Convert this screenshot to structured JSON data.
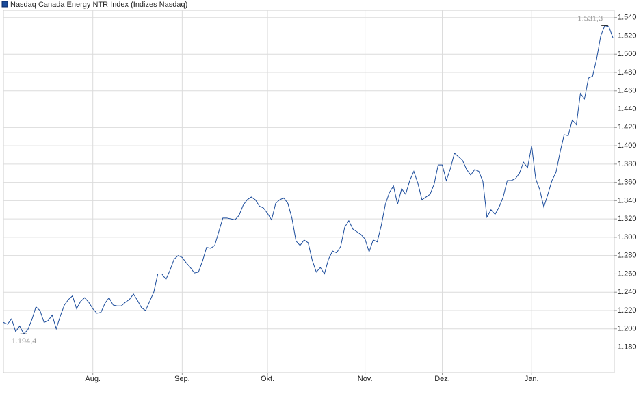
{
  "chart_data": {
    "type": "line",
    "title": "Nasdaq Canada Energy NTR Index  (Indizes Nasdaq)",
    "series": [
      {
        "name": "Nasdaq Canada Energy NTR Index",
        "color": "#1a4b9b",
        "values": [
          1207,
          1205,
          1211,
          1197,
          1203,
          1194.4,
          1199,
          1210,
          1224,
          1220,
          1207,
          1209,
          1215,
          1200,
          1214,
          1226,
          1232,
          1236,
          1222,
          1230,
          1234,
          1229,
          1222,
          1217,
          1218,
          1228,
          1234,
          1226,
          1225,
          1225,
          1229,
          1232,
          1238,
          1231,
          1223,
          1220,
          1230,
          1240,
          1260,
          1260,
          1254,
          1264,
          1276,
          1280,
          1278,
          1272,
          1267,
          1261,
          1262,
          1274,
          1289,
          1288,
          1291,
          1306,
          1321,
          1321,
          1320,
          1319,
          1324,
          1335,
          1341,
          1344,
          1341,
          1334,
          1332,
          1326,
          1319,
          1337,
          1341,
          1343,
          1337,
          1321,
          1296,
          1291,
          1297,
          1294,
          1275,
          1262,
          1267,
          1260,
          1276,
          1285,
          1283,
          1290,
          1311,
          1318,
          1309,
          1306,
          1303,
          1298,
          1284,
          1297,
          1295,
          1313,
          1336,
          1349,
          1356,
          1336,
          1353,
          1347,
          1362,
          1372,
          1359,
          1341,
          1344,
          1347,
          1358,
          1379,
          1379,
          1362,
          1375,
          1392,
          1388,
          1384,
          1374,
          1368,
          1374,
          1372,
          1361,
          1322,
          1330,
          1325,
          1333,
          1344,
          1362,
          1362,
          1364,
          1370,
          1382,
          1376,
          1400,
          1364,
          1352,
          1333,
          1347,
          1362,
          1371,
          1393,
          1412,
          1411,
          1428,
          1423,
          1457,
          1451,
          1474,
          1476,
          1495,
          1520,
          1531.3,
          1530,
          1518
        ]
      }
    ],
    "annotations": [
      {
        "label": "1.531,3",
        "value": 1531.3
      },
      {
        "label": "1.194,4",
        "value": 1194.4
      }
    ],
    "xlim": [
      0,
      150
    ],
    "xticks": [
      {
        "value": 22,
        "label": "Aug."
      },
      {
        "value": 44,
        "label": "Sep."
      },
      {
        "value": 65,
        "label": "Okt."
      },
      {
        "value": 89,
        "label": "Nov."
      },
      {
        "value": 108,
        "label": "Dez."
      },
      {
        "value": 130,
        "label": "Jan."
      }
    ],
    "ylim": [
      1152,
      1548
    ],
    "yticks": [
      {
        "value": 1180,
        "label": "1.180"
      },
      {
        "value": 1200,
        "label": "1.200"
      },
      {
        "value": 1220,
        "label": "1.220"
      },
      {
        "value": 1240,
        "label": "1.240"
      },
      {
        "value": 1260,
        "label": "1.260"
      },
      {
        "value": 1280,
        "label": "1.280"
      },
      {
        "value": 1300,
        "label": "1.300"
      },
      {
        "value": 1320,
        "label": "1.320"
      },
      {
        "value": 1340,
        "label": "1.340"
      },
      {
        "value": 1360,
        "label": "1.360"
      },
      {
        "value": 1380,
        "label": "1.380"
      },
      {
        "value": 1400,
        "label": "1.400"
      },
      {
        "value": 1420,
        "label": "1.420"
      },
      {
        "value": 1440,
        "label": "1.440"
      },
      {
        "value": 1460,
        "label": "1.460"
      },
      {
        "value": 1480,
        "label": "1.480"
      },
      {
        "value": 1500,
        "label": "1.500"
      },
      {
        "value": 1520,
        "label": "1.520"
      },
      {
        "value": 1540,
        "label": "1.540"
      }
    ],
    "grid": true
  }
}
